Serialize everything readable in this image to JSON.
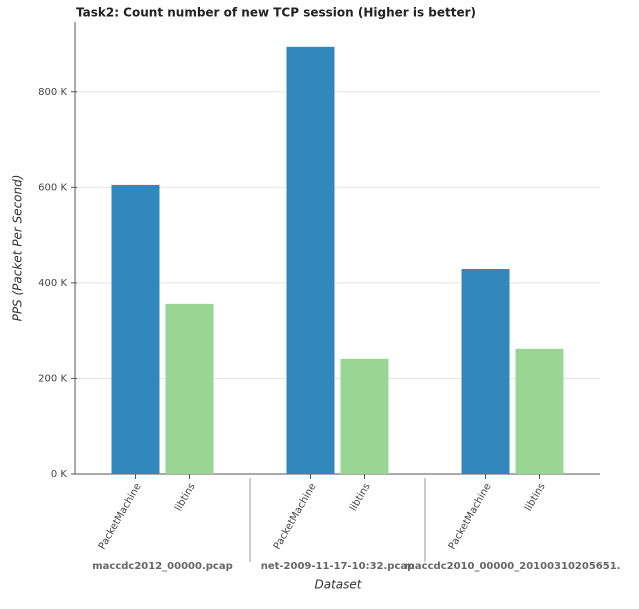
{
  "chart_data": {
    "type": "bar",
    "title": "Task2: Count number of new TCP session (Higher is better)",
    "xlabel": "Dataset",
    "ylabel": "PPS (Packet Per Second)",
    "categories": [
      "maccdc2012_00000.pcap",
      "net-2009-11-17-10:32.pcap",
      "maccdc2010_00000_20100310205651."
    ],
    "series": [
      {
        "name": "PacketMachine",
        "color": "#3288bd",
        "values": [
          605000,
          894000,
          429000
        ]
      },
      {
        "name": "libtins",
        "color": "#99d594",
        "values": [
          356000,
          241000,
          262000
        ]
      }
    ],
    "ylim": [
      0,
      946000
    ],
    "yticks": [
      {
        "value": 0,
        "label": "0 K"
      },
      {
        "value": 200000,
        "label": "200 K"
      },
      {
        "value": 400000,
        "label": "400 K"
      },
      {
        "value": 600000,
        "label": "600 K"
      },
      {
        "value": 800000,
        "label": "800 K"
      }
    ],
    "grid": true
  }
}
